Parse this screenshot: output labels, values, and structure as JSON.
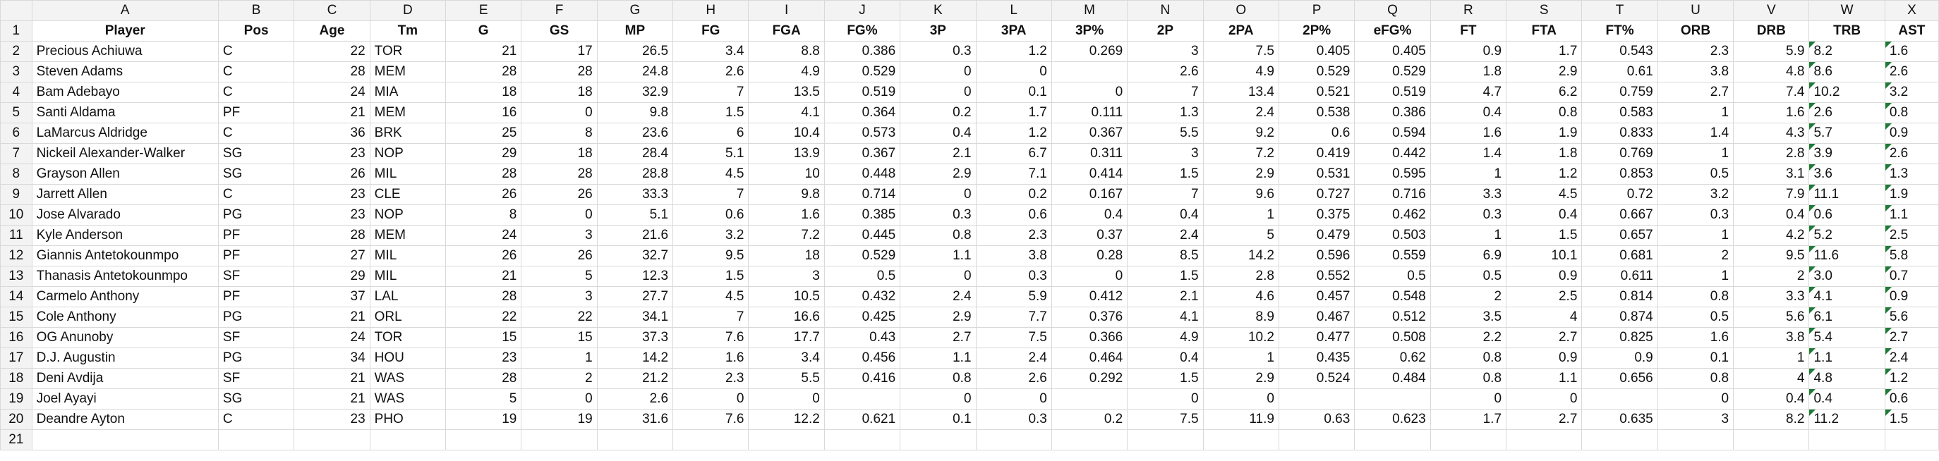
{
  "column_letters": [
    "A",
    "B",
    "C",
    "D",
    "E",
    "F",
    "G",
    "H",
    "I",
    "J",
    "K",
    "L",
    "M",
    "N",
    "O",
    "P",
    "Q",
    "R",
    "S",
    "T",
    "U",
    "V",
    "W",
    "X"
  ],
  "header_row": {
    "row_number": "1",
    "cells": [
      "Player",
      "Pos",
      "Age",
      "Tm",
      "G",
      "GS",
      "MP",
      "FG",
      "FGA",
      "FG%",
      "3P",
      "3PA",
      "3P%",
      "2P",
      "2PA",
      "2P%",
      "eFG%",
      "FT",
      "FTA",
      "FT%",
      "ORB",
      "DRB",
      "TRB",
      "AST"
    ]
  },
  "rows": [
    {
      "n": "2",
      "c": [
        "Precious Achiuwa",
        "C",
        "22",
        "TOR",
        "21",
        "17",
        "26.5",
        "3.4",
        "8.8",
        "0.386",
        "0.3",
        "1.2",
        "0.269",
        "3",
        "7.5",
        "0.405",
        "0.405",
        "0.9",
        "1.7",
        "0.543",
        "2.3",
        "5.9",
        "8.2",
        "1.6"
      ]
    },
    {
      "n": "3",
      "c": [
        "Steven Adams",
        "C",
        "28",
        "MEM",
        "28",
        "28",
        "24.8",
        "2.6",
        "4.9",
        "0.529",
        "0",
        "0",
        "",
        "2.6",
        "4.9",
        "0.529",
        "0.529",
        "1.8",
        "2.9",
        "0.61",
        "3.8",
        "4.8",
        "8.6",
        "2.6"
      ]
    },
    {
      "n": "4",
      "c": [
        "Bam Adebayo",
        "C",
        "24",
        "MIA",
        "18",
        "18",
        "32.9",
        "7",
        "13.5",
        "0.519",
        "0",
        "0.1",
        "0",
        "7",
        "13.4",
        "0.521",
        "0.519",
        "4.7",
        "6.2",
        "0.759",
        "2.7",
        "7.4",
        "10.2",
        "3.2"
      ]
    },
    {
      "n": "5",
      "c": [
        "Santi Aldama",
        "PF",
        "21",
        "MEM",
        "16",
        "0",
        "9.8",
        "1.5",
        "4.1",
        "0.364",
        "0.2",
        "1.7",
        "0.111",
        "1.3",
        "2.4",
        "0.538",
        "0.386",
        "0.4",
        "0.8",
        "0.583",
        "1",
        "1.6",
        "2.6",
        "0.8"
      ]
    },
    {
      "n": "6",
      "c": [
        "LaMarcus Aldridge",
        "C",
        "36",
        "BRK",
        "25",
        "8",
        "23.6",
        "6",
        "10.4",
        "0.573",
        "0.4",
        "1.2",
        "0.367",
        "5.5",
        "9.2",
        "0.6",
        "0.594",
        "1.6",
        "1.9",
        "0.833",
        "1.4",
        "4.3",
        "5.7",
        "0.9"
      ]
    },
    {
      "n": "7",
      "c": [
        "Nickeil Alexander-Walker",
        "SG",
        "23",
        "NOP",
        "29",
        "18",
        "28.4",
        "5.1",
        "13.9",
        "0.367",
        "2.1",
        "6.7",
        "0.311",
        "3",
        "7.2",
        "0.419",
        "0.442",
        "1.4",
        "1.8",
        "0.769",
        "1",
        "2.8",
        "3.9",
        "2.6"
      ]
    },
    {
      "n": "8",
      "c": [
        "Grayson Allen",
        "SG",
        "26",
        "MIL",
        "28",
        "28",
        "28.8",
        "4.5",
        "10",
        "0.448",
        "2.9",
        "7.1",
        "0.414",
        "1.5",
        "2.9",
        "0.531",
        "0.595",
        "1",
        "1.2",
        "0.853",
        "0.5",
        "3.1",
        "3.6",
        "1.3"
      ]
    },
    {
      "n": "9",
      "c": [
        "Jarrett Allen",
        "C",
        "23",
        "CLE",
        "26",
        "26",
        "33.3",
        "7",
        "9.8",
        "0.714",
        "0",
        "0.2",
        "0.167",
        "7",
        "9.6",
        "0.727",
        "0.716",
        "3.3",
        "4.5",
        "0.72",
        "3.2",
        "7.9",
        "11.1",
        "1.9"
      ]
    },
    {
      "n": "10",
      "c": [
        "Jose Alvarado",
        "PG",
        "23",
        "NOP",
        "8",
        "0",
        "5.1",
        "0.6",
        "1.6",
        "0.385",
        "0.3",
        "0.6",
        "0.4",
        "0.4",
        "1",
        "0.375",
        "0.462",
        "0.3",
        "0.4",
        "0.667",
        "0.3",
        "0.4",
        "0.6",
        "1.1"
      ]
    },
    {
      "n": "11",
      "c": [
        "Kyle Anderson",
        "PF",
        "28",
        "MEM",
        "24",
        "3",
        "21.6",
        "3.2",
        "7.2",
        "0.445",
        "0.8",
        "2.3",
        "0.37",
        "2.4",
        "5",
        "0.479",
        "0.503",
        "1",
        "1.5",
        "0.657",
        "1",
        "4.2",
        "5.2",
        "2.5"
      ]
    },
    {
      "n": "12",
      "c": [
        "Giannis Antetokounmpo",
        "PF",
        "27",
        "MIL",
        "26",
        "26",
        "32.7",
        "9.5",
        "18",
        "0.529",
        "1.1",
        "3.8",
        "0.28",
        "8.5",
        "14.2",
        "0.596",
        "0.559",
        "6.9",
        "10.1",
        "0.681",
        "2",
        "9.5",
        "11.6",
        "5.8"
      ]
    },
    {
      "n": "13",
      "c": [
        "Thanasis Antetokounmpo",
        "SF",
        "29",
        "MIL",
        "21",
        "5",
        "12.3",
        "1.5",
        "3",
        "0.5",
        "0",
        "0.3",
        "0",
        "1.5",
        "2.8",
        "0.552",
        "0.5",
        "0.5",
        "0.9",
        "0.611",
        "1",
        "2",
        "3.0",
        "0.7"
      ]
    },
    {
      "n": "14",
      "c": [
        "Carmelo Anthony",
        "PF",
        "37",
        "LAL",
        "28",
        "3",
        "27.7",
        "4.5",
        "10.5",
        "0.432",
        "2.4",
        "5.9",
        "0.412",
        "2.1",
        "4.6",
        "0.457",
        "0.548",
        "2",
        "2.5",
        "0.814",
        "0.8",
        "3.3",
        "4.1",
        "0.9"
      ]
    },
    {
      "n": "15",
      "c": [
        "Cole Anthony",
        "PG",
        "21",
        "ORL",
        "22",
        "22",
        "34.1",
        "7",
        "16.6",
        "0.425",
        "2.9",
        "7.7",
        "0.376",
        "4.1",
        "8.9",
        "0.467",
        "0.512",
        "3.5",
        "4",
        "0.874",
        "0.5",
        "5.6",
        "6.1",
        "5.6"
      ]
    },
    {
      "n": "16",
      "c": [
        "OG Anunoby",
        "SF",
        "24",
        "TOR",
        "15",
        "15",
        "37.3",
        "7.6",
        "17.7",
        "0.43",
        "2.7",
        "7.5",
        "0.366",
        "4.9",
        "10.2",
        "0.477",
        "0.508",
        "2.2",
        "2.7",
        "0.825",
        "1.6",
        "3.8",
        "5.4",
        "2.7"
      ]
    },
    {
      "n": "17",
      "c": [
        "D.J. Augustin",
        "PG",
        "34",
        "HOU",
        "23",
        "1",
        "14.2",
        "1.6",
        "3.4",
        "0.456",
        "1.1",
        "2.4",
        "0.464",
        "0.4",
        "1",
        "0.435",
        "0.62",
        "0.8",
        "0.9",
        "0.9",
        "0.1",
        "1",
        "1.1",
        "2.4"
      ]
    },
    {
      "n": "18",
      "c": [
        "Deni Avdija",
        "SF",
        "21",
        "WAS",
        "28",
        "2",
        "21.2",
        "2.3",
        "5.5",
        "0.416",
        "0.8",
        "2.6",
        "0.292",
        "1.5",
        "2.9",
        "0.524",
        "0.484",
        "0.8",
        "1.1",
        "0.656",
        "0.8",
        "4",
        "4.8",
        "1.2"
      ]
    },
    {
      "n": "19",
      "c": [
        "Joel Ayayi",
        "SG",
        "21",
        "WAS",
        "5",
        "0",
        "2.6",
        "0",
        "0",
        "",
        "0",
        "0",
        "",
        "0",
        "0",
        "",
        "",
        "0",
        "0",
        "",
        "0",
        "0.4",
        "0.4",
        "0.6"
      ]
    },
    {
      "n": "20",
      "c": [
        "Deandre Ayton",
        "C",
        "23",
        "PHO",
        "19",
        "19",
        "31.6",
        "7.6",
        "12.2",
        "0.621",
        "0.1",
        "0.3",
        "0.2",
        "7.5",
        "11.9",
        "0.63",
        "0.623",
        "1.7",
        "2.7",
        "0.635",
        "3",
        "8.2",
        "11.2",
        "1.5"
      ]
    },
    {
      "n": "21",
      "c": [
        "",
        "",
        "",
        "",
        "",
        "",
        "",
        "",
        "",
        "",
        "",
        "",
        "",
        "",
        "",
        "",
        "",
        "",
        "",
        "",
        "",
        "",
        "",
        ""
      ]
    }
  ],
  "flagged_columns": [
    "W",
    "X"
  ]
}
